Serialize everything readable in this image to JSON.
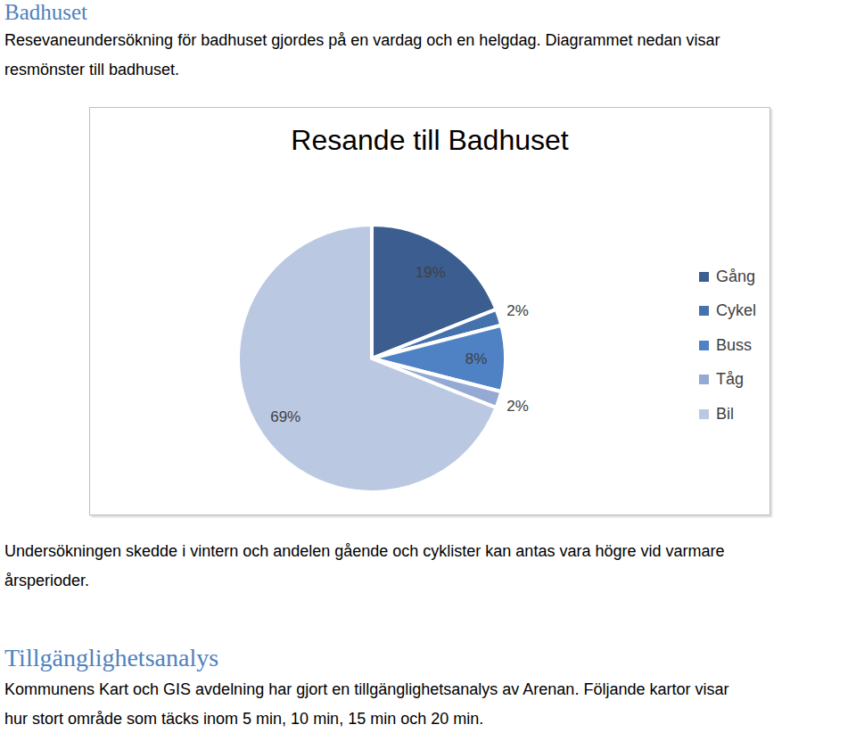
{
  "heading": "Badhuset",
  "intro": [
    "Resevaneundersökning för badhuset gjordes på en vardag och en helgdag. Diagrammet nedan visar",
    "resmönster till badhuset."
  ],
  "chart_data": {
    "type": "pie",
    "title": "Resande till Badhuset",
    "categories": [
      "Gång",
      "Cykel",
      "Buss",
      "Tåg",
      "Bil"
    ],
    "values": [
      19,
      2,
      8,
      2,
      69
    ],
    "value_labels": [
      "19%",
      "2%",
      "8%",
      "2%",
      "69%"
    ],
    "colors": [
      "#3b5d8f",
      "#4571ac",
      "#4f82c4",
      "#94a9d3",
      "#bac8e2"
    ],
    "data_labels": true,
    "legend": "right"
  },
  "note": [
    "Undersökningen skedde i vintern och andelen gående och cyklister kan antas vara högre vid varmare",
    "årsperioder."
  ],
  "section": {
    "heading": "Tillgänglighetsanalys",
    "text": [
      "Kommunens Kart och GIS avdelning har gjort en tillgänglighetsanalys av Arenan. Följande kartor visar",
      "hur stort område som täcks inom 5 min, 10 min, 15 min och 20 min."
    ]
  }
}
